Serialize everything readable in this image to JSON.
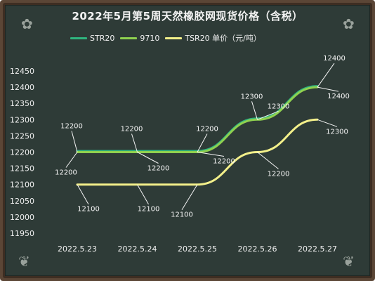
{
  "title": "2022年5月第5周天然橡胶网现货价格（含税）",
  "colors": {
    "background": "#2e3b37",
    "frame": "#5b4636",
    "line_str20": "#2fb57f",
    "line_9710": "#8fd14f",
    "line_tsr20": "#f3f08a",
    "text": "#f0f0f0"
  },
  "chart_data": {
    "type": "line",
    "categories": [
      "2022.5.23",
      "2022.5.24",
      "2022.5.25",
      "2022.5.26",
      "2022.5.27"
    ],
    "ylim": [
      11950,
      12450
    ],
    "yticks": [
      11950,
      12000,
      12050,
      12100,
      12150,
      12200,
      12250,
      12300,
      12350,
      12400,
      12450
    ],
    "grid": false,
    "legend": "top-left",
    "series": [
      {
        "name": "STR20",
        "values": [
          12200,
          12200,
          12200,
          12300,
          12400
        ],
        "color": "#2fb57f"
      },
      {
        "name": "9710",
        "values": [
          12200,
          12200,
          12200,
          12300,
          12400
        ],
        "color": "#8fd14f"
      },
      {
        "name": "TSR20 单价（元/吨）",
        "values": [
          12100,
          12100,
          12100,
          12200,
          12300
        ],
        "color": "#f3f08a"
      }
    ],
    "data_labels": {
      "upper": [
        "12200",
        "12200",
        "12200",
        "12300",
        "12400"
      ],
      "upper_alt": [
        "12200",
        "12200",
        "12200",
        "12300",
        "12400"
      ],
      "lower": [
        "12100",
        "12100",
        "12100",
        "12200",
        "12300"
      ]
    }
  },
  "decor": {
    "corner_icon": "leaf-sketch-icon"
  }
}
